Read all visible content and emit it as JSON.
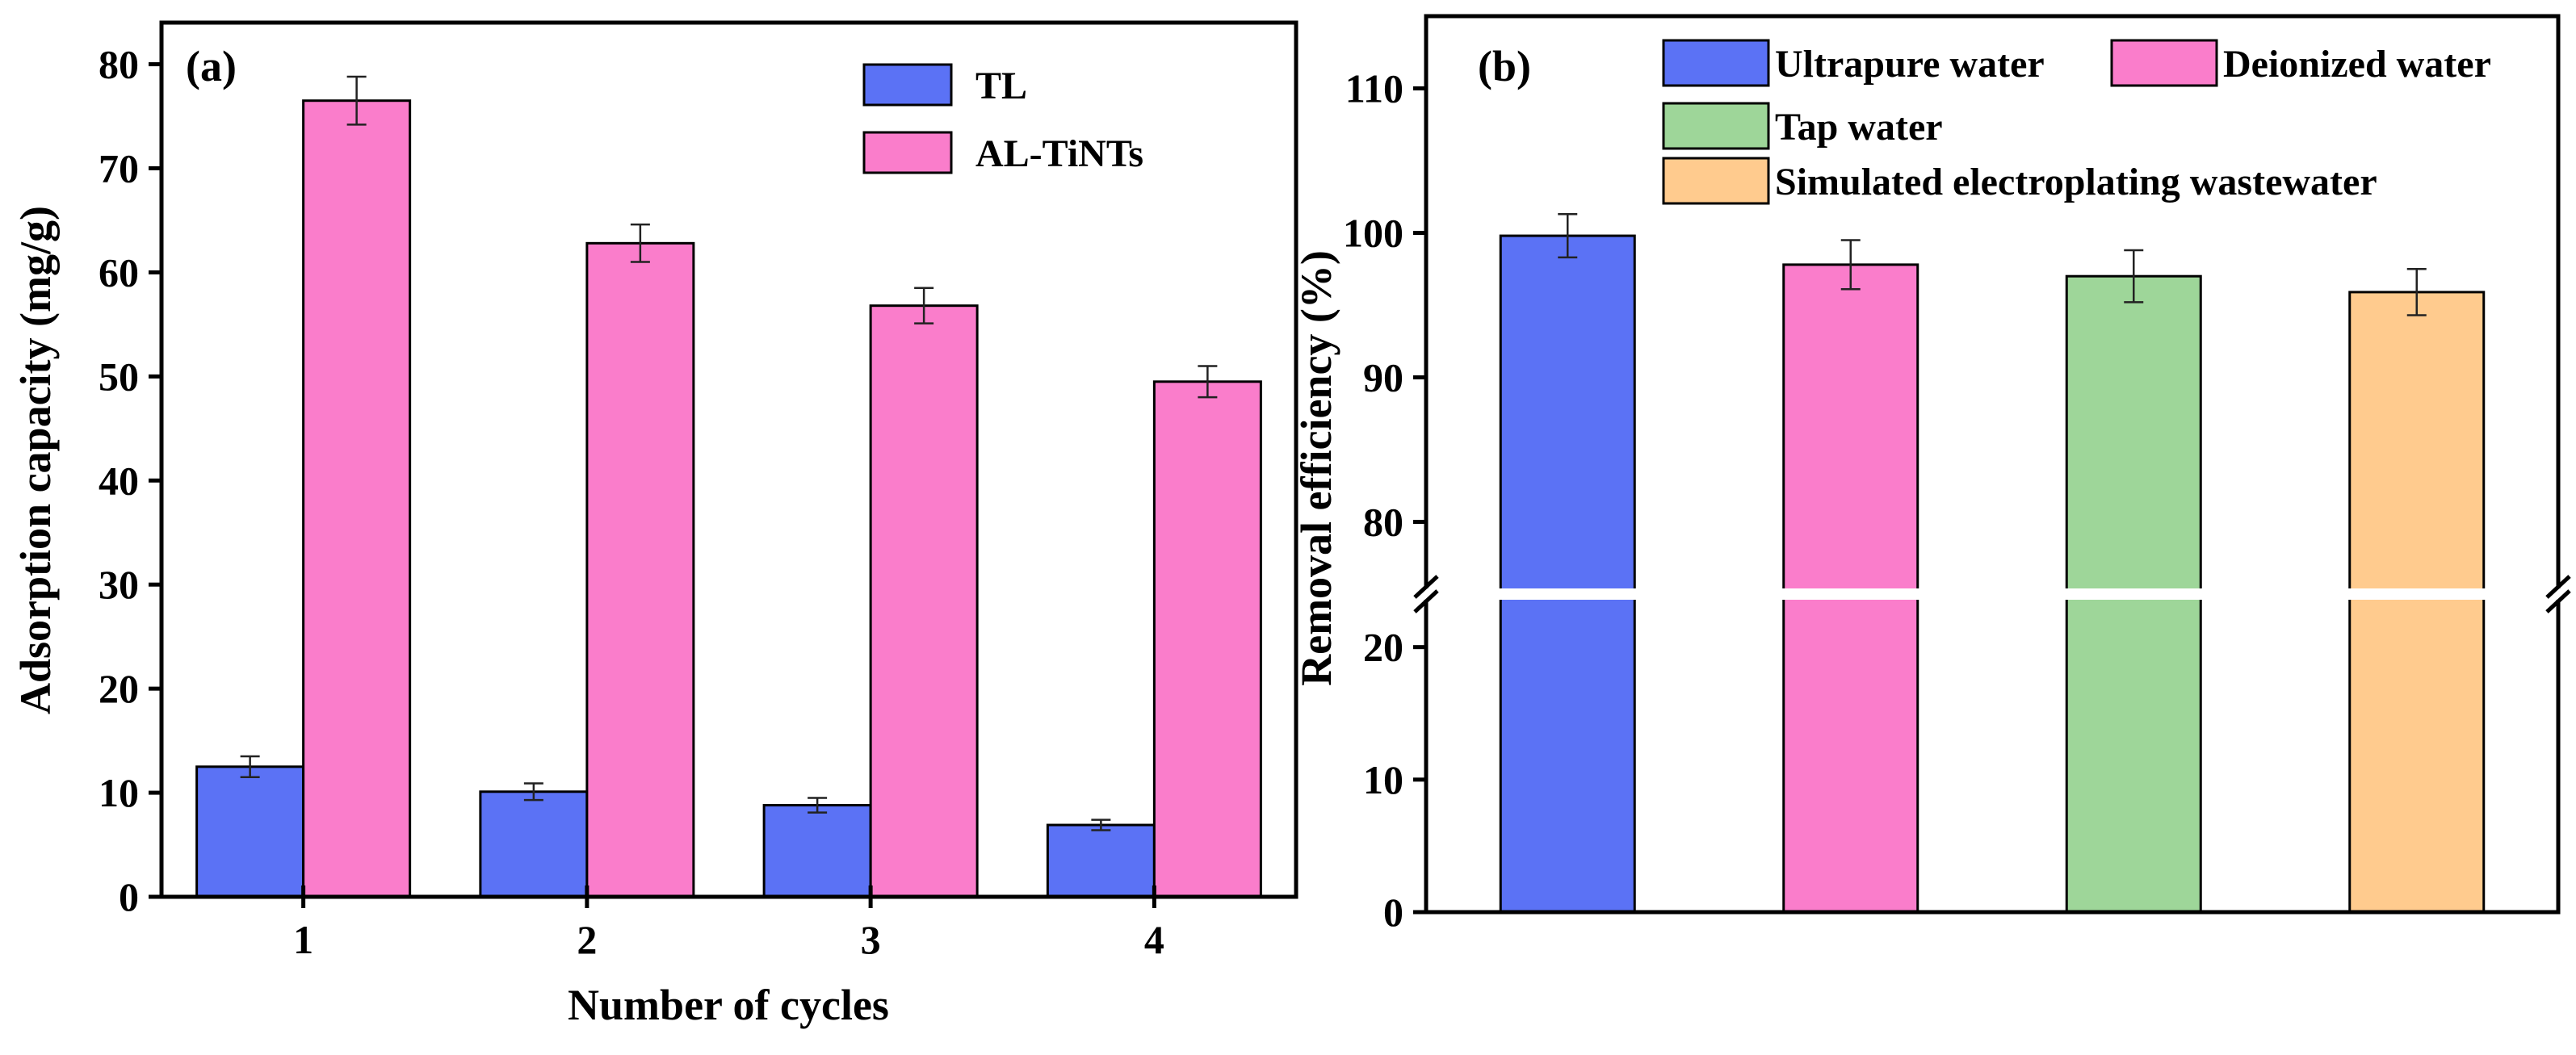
{
  "chart_data": [
    {
      "panel": "(a)",
      "type": "bar",
      "xlabel": "Number of cycles",
      "ylabel": "Adsorption capacity (mg/g)",
      "categories": [
        "1",
        "2",
        "3",
        "4"
      ],
      "ylim": [
        0,
        84
      ],
      "yticks": [
        "0",
        "10",
        "20",
        "30",
        "40",
        "50",
        "60",
        "70",
        "80"
      ],
      "legend_position": "top-right",
      "series": [
        {
          "name": "TL",
          "color": "#5B72F5",
          "values": [
            12.5,
            10.1,
            8.8,
            6.9
          ],
          "errors": [
            1.0,
            0.8,
            0.7,
            0.5
          ]
        },
        {
          "name": "AL-TiNTs",
          "color": "#FA7DCB",
          "values": [
            76.5,
            62.8,
            56.8,
            49.5
          ],
          "errors": [
            2.3,
            1.8,
            1.7,
            1.5
          ]
        }
      ]
    },
    {
      "panel": "(b)",
      "type": "bar",
      "xlabel": "",
      "ylabel": "Removal efficiency (%)",
      "categories": [
        "Ultrapure water",
        "Deionized water",
        "Tap water",
        "Simulated electroplating wastewater"
      ],
      "values": [
        99.8,
        97.8,
        97.0,
        95.9
      ],
      "errors": [
        1.5,
        1.7,
        1.8,
        1.6
      ],
      "colors": [
        "#5B72F5",
        "#FA7DCB",
        "#9ED699",
        "#FFCB8E"
      ],
      "axis_break": true,
      "lower_range": [
        0,
        24
      ],
      "upper_range": [
        75,
        115
      ],
      "yticks_lower": [
        "0",
        "10",
        "20"
      ],
      "yticks_upper": [
        "80",
        "90",
        "100",
        "110"
      ],
      "legend_position": "top"
    }
  ]
}
